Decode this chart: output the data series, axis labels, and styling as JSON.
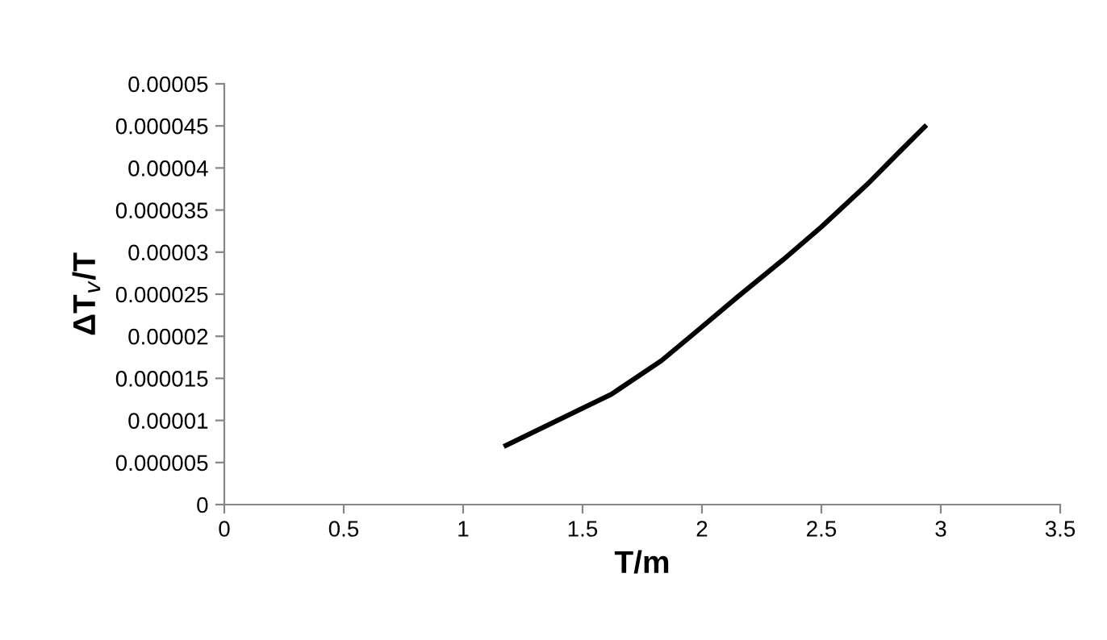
{
  "chart_data": {
    "type": "line",
    "xlabel": "T/m",
    "ylabel": "ΔT$_{v}$/T",
    "series": [
      {
        "color": "#000000",
        "x": [
          1.17,
          1.38,
          1.62,
          1.83,
          1.97,
          2.15,
          2.34,
          2.5,
          2.69,
          2.83,
          2.94
        ],
        "values": [
          6.9e-06,
          9.8e-06,
          1.31e-05,
          1.71e-05,
          2.04e-05,
          2.47e-05,
          2.91e-05,
          3.3e-05,
          3.8e-05,
          4.2e-05,
          4.51e-05
        ]
      }
    ],
    "xlim": [
      0,
      3.5
    ],
    "xticks": [
      0,
      0.5,
      1,
      1.5,
      2,
      2.5,
      3,
      3.5
    ],
    "ylim": [
      0,
      5e-05
    ],
    "yticks": [
      {
        "value": 0,
        "label": "0"
      },
      {
        "value": 5e-06,
        "label": "0.000005"
      },
      {
        "value": 1e-05,
        "label": "0.00001"
      },
      {
        "value": 1.5e-05,
        "label": "0.000015"
      },
      {
        "value": 2e-05,
        "label": "0.00002"
      },
      {
        "value": 2.5e-05,
        "label": "0.000025"
      },
      {
        "value": 3e-05,
        "label": "0.00003"
      },
      {
        "value": 3.5e-05,
        "label": "0.000035"
      },
      {
        "value": 4e-05,
        "label": "0.00004"
      },
      {
        "value": 4.5e-05,
        "label": "0.000045"
      },
      {
        "value": 5e-05,
        "label": "0.00005"
      }
    ],
    "grid": false,
    "legend": false,
    "marker": "none",
    "line_style": "solid"
  }
}
